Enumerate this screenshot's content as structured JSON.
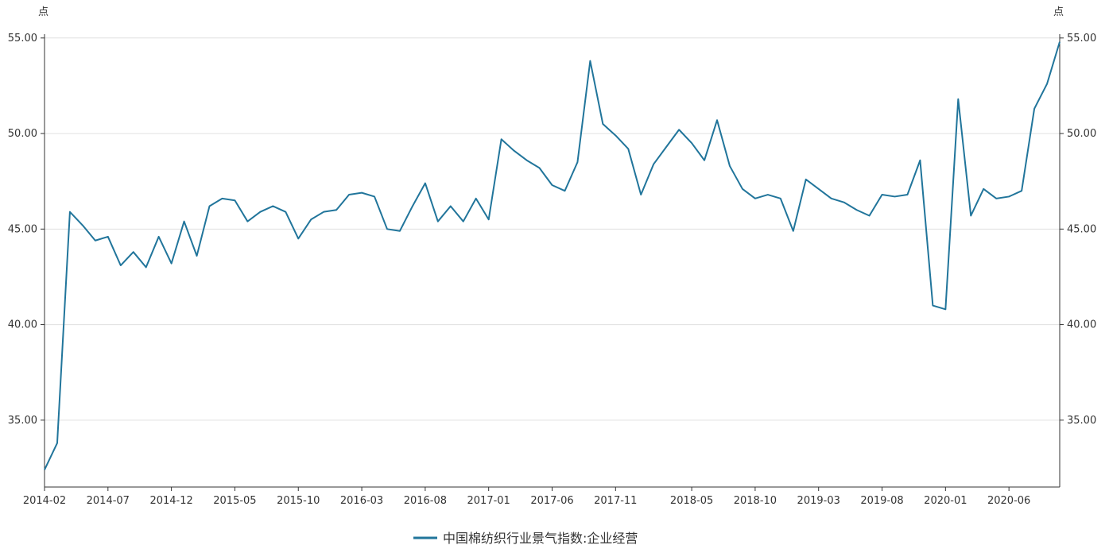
{
  "chart_data": {
    "type": "line",
    "unit_left": "点",
    "unit_right": "点",
    "y_ticks": [
      "35.00",
      "40.00",
      "45.00",
      "50.00",
      "55.00"
    ],
    "ylim": [
      31.5,
      55.2
    ],
    "x_labels": [
      "2014-02",
      "2014-07",
      "2014-12",
      "2015-05",
      "2015-10",
      "2016-03",
      "2016-08",
      "2017-01",
      "2017-06",
      "2017-11",
      "2018-05",
      "2018-10",
      "2019-03",
      "2019-08",
      "2020-01",
      "2020-06"
    ],
    "grid": true,
    "legend_position": "bottom-center",
    "series": [
      {
        "name": "中国棉纺织行业景气指数:企业经营",
        "color": "#21759b",
        "x": [
          "2014-02",
          "2014-03",
          "2014-04",
          "2014-05",
          "2014-06",
          "2014-07",
          "2014-08",
          "2014-09",
          "2014-10",
          "2014-11",
          "2014-12",
          "2015-01",
          "2015-02",
          "2015-03",
          "2015-04",
          "2015-05",
          "2015-06",
          "2015-07",
          "2015-08",
          "2015-09",
          "2015-10",
          "2015-11",
          "2015-12",
          "2016-01",
          "2016-02",
          "2016-03",
          "2016-04",
          "2016-05",
          "2016-06",
          "2016-07",
          "2016-08",
          "2016-09",
          "2016-10",
          "2016-11",
          "2016-12",
          "2017-01",
          "2017-02",
          "2017-03",
          "2017-04",
          "2017-05",
          "2017-06",
          "2017-07",
          "2017-08",
          "2017-09",
          "2017-10",
          "2017-11",
          "2017-12",
          "2018-01",
          "2018-02",
          "2018-03",
          "2018-04",
          "2018-05",
          "2018-06",
          "2018-07",
          "2018-08",
          "2018-09",
          "2018-10",
          "2018-11",
          "2018-12",
          "2019-01",
          "2019-02",
          "2019-03",
          "2019-04",
          "2019-05",
          "2019-06",
          "2019-07",
          "2019-08",
          "2019-09",
          "2019-10",
          "2019-11",
          "2019-12",
          "2020-01",
          "2020-02",
          "2020-03",
          "2020-04",
          "2020-05",
          "2020-06",
          "2020-07",
          "2020-08",
          "2020-09",
          "2020-10"
        ],
        "values": [
          32.4,
          33.8,
          45.9,
          45.2,
          44.4,
          44.6,
          43.1,
          43.8,
          43.0,
          44.6,
          43.2,
          45.4,
          43.6,
          46.2,
          46.6,
          46.5,
          45.4,
          45.9,
          46.2,
          45.9,
          44.5,
          45.5,
          45.9,
          46.0,
          46.8,
          46.9,
          46.7,
          45.0,
          44.9,
          46.2,
          47.4,
          45.4,
          46.2,
          45.4,
          46.6,
          45.5,
          49.7,
          49.1,
          48.6,
          48.2,
          47.3,
          47.0,
          48.5,
          53.8,
          50.5,
          49.9,
          49.2,
          46.8,
          48.4,
          49.3,
          50.2,
          49.5,
          48.6,
          50.7,
          48.3,
          47.1,
          46.6,
          46.8,
          46.6,
          44.9,
          47.6,
          47.1,
          46.6,
          46.4,
          46.0,
          45.7,
          46.8,
          46.7,
          46.8,
          48.6,
          41.0,
          40.8,
          51.8,
          45.7,
          47.1,
          46.6,
          46.7,
          47.0,
          51.3,
          52.6,
          54.8
        ]
      }
    ]
  }
}
